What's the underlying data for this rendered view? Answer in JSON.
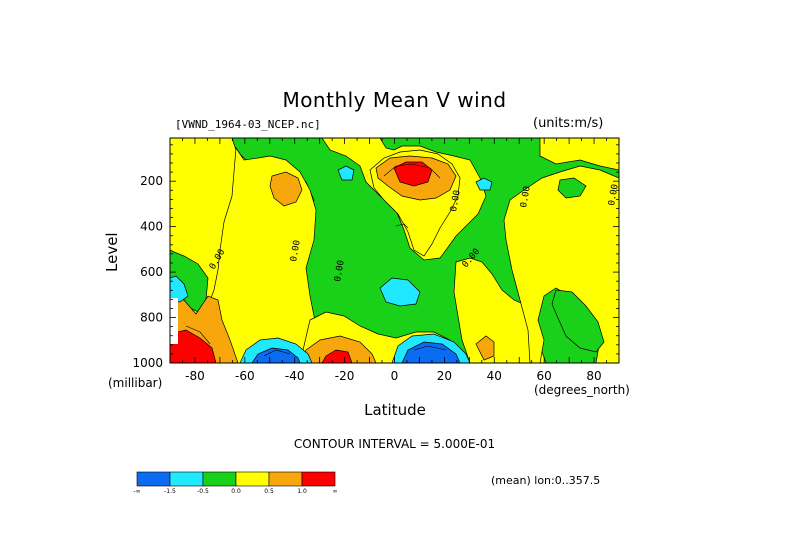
{
  "chart_data": {
    "type": "heatmap",
    "title": "Monthly Mean V wind",
    "dataset_label": "[VWND_1964-03_NCEP.nc]",
    "units_label": "(units:m/s)",
    "xlabel": "Latitude",
    "ylabel": "Level",
    "x_units": "(degrees_north)",
    "y_units": "(millibar)",
    "xlim": [
      -90,
      90
    ],
    "ylim": [
      10,
      1000
    ],
    "y_inverted": true,
    "x_ticks": [
      "-80",
      "-60",
      "-40",
      "-20",
      "0",
      "20",
      "40",
      "60",
      "80"
    ],
    "y_ticks": [
      "200",
      "400",
      "600",
      "800",
      "1000"
    ],
    "contour_interval_label": "CONTOUR INTERVAL = 5.000E-01",
    "mean_lon_label": "(mean) lon:0..357.5",
    "colorbar": {
      "colors": [
        "#0b6cf2",
        "#1fe8ff",
        "#1ad11a",
        "#ffff00",
        "#f7a70c",
        "#ff0000"
      ],
      "labels": [
        "-∞",
        "-1.5",
        "-0.5",
        "0.0",
        "0.5",
        "1.0",
        "∞"
      ]
    },
    "contour_labels": [
      "0.00",
      "0.00",
      "0.00",
      "0.00",
      "0.00",
      "0.00",
      "0.00"
    ],
    "regions": [
      {
        "level": "0.0 to 0.5",
        "color": "#ffff00",
        "lat": [
          -88,
          -66
        ],
        "p": [
          140,
          600
        ]
      },
      {
        "level": "0.5 to 1.0",
        "color": "#f7a70c",
        "lat": [
          -42,
          -30
        ],
        "p": [
          190,
          300
        ]
      },
      {
        "level": "1.0 to inf",
        "color": "#ff0000",
        "lat": [
          6,
          18
        ],
        "p": [
          160,
          220
        ]
      },
      {
        "level": "-1.5 to -inf",
        "color": "#0b6cf2",
        "lat": [
          -58,
          -42
        ],
        "p": [
          920,
          1000
        ]
      },
      {
        "level": "-1.5 to -inf",
        "color": "#0b6cf2",
        "lat": [
          4,
          22
        ],
        "p": [
          900,
          1000
        ]
      },
      {
        "level": "1.0 to inf",
        "color": "#ff0000",
        "lat": [
          -82,
          -72
        ],
        "p": [
          880,
          1000
        ]
      },
      {
        "level": "1.0 to inf",
        "color": "#ff0000",
        "lat": [
          -30,
          -20
        ],
        "p": [
          950,
          1000
        ]
      }
    ]
  }
}
